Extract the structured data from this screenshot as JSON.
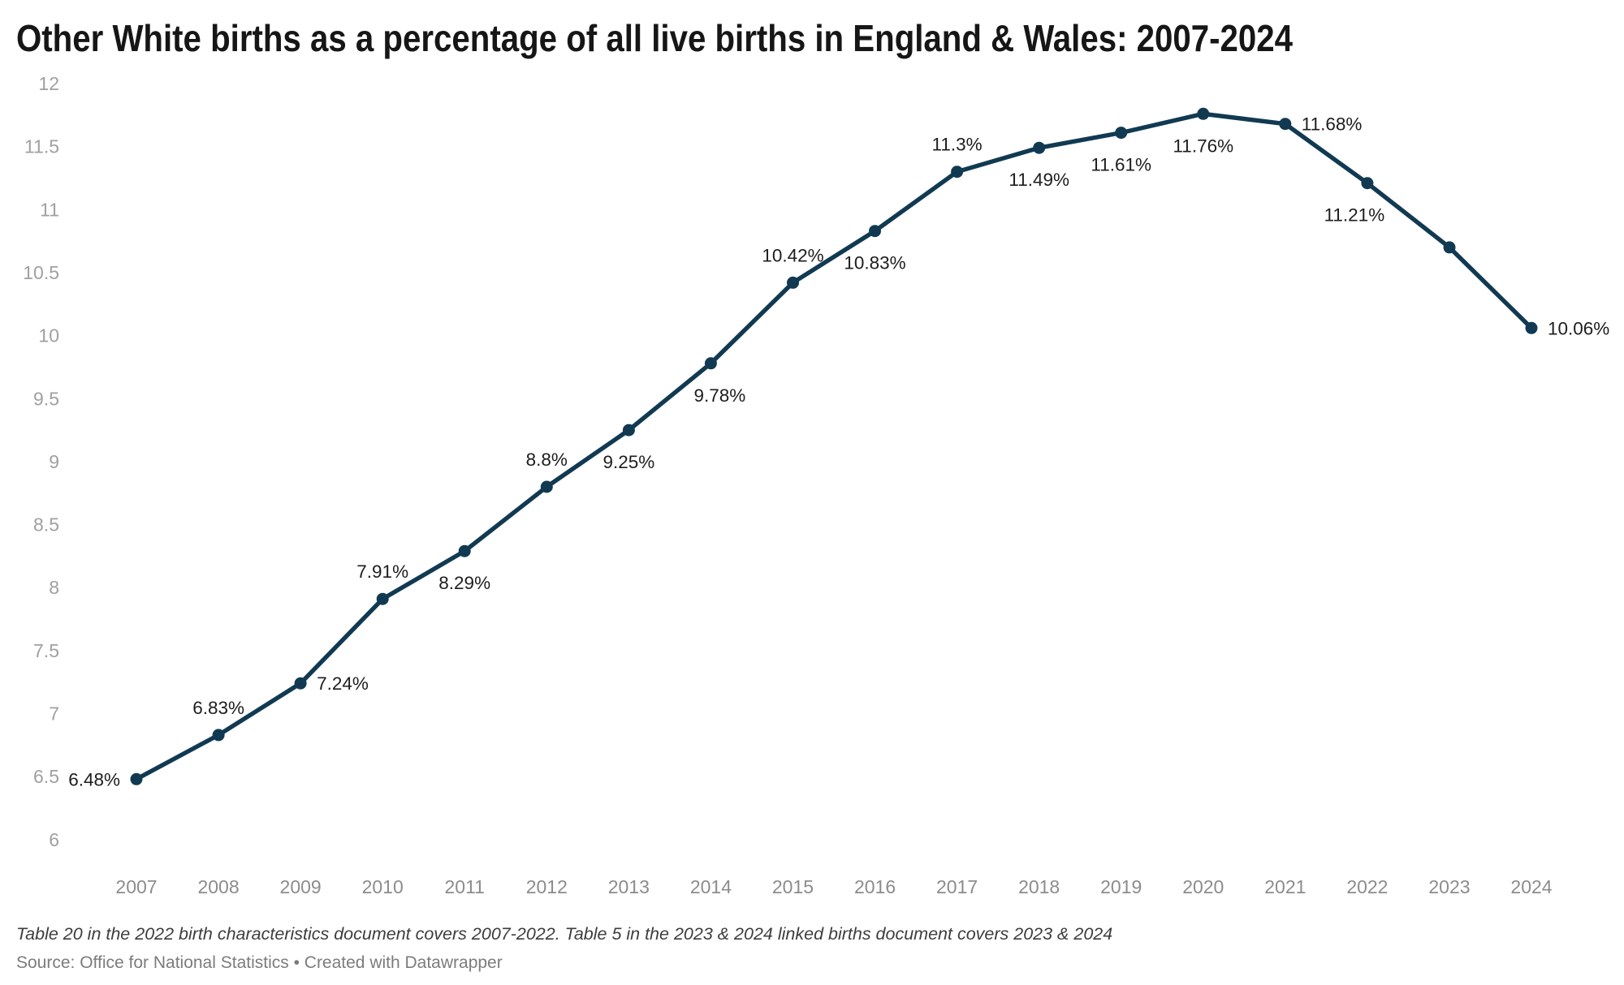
{
  "title": "Other White births as a percentage of all live births in England & Wales: 2007-2024",
  "footnote": "Table 20 in the 2022 birth characteristics document covers 2007-2022. Table 5 in the 2023 & 2024 linked births document covers 2023 & 2024",
  "source": "Source: Office for National Statistics • Created with Datawrapper",
  "chart_data": {
    "type": "line",
    "title": "Other White births as a percentage of all live births in England & Wales: 2007-2024",
    "x": [
      2007,
      2008,
      2009,
      2010,
      2011,
      2012,
      2013,
      2014,
      2015,
      2016,
      2017,
      2018,
      2019,
      2020,
      2021,
      2022,
      2023,
      2024
    ],
    "series": [
      {
        "name": "Other White births as a percentage of all live births",
        "values": [
          6.48,
          6.83,
          7.24,
          7.91,
          8.29,
          8.8,
          9.25,
          9.78,
          10.42,
          10.83,
          11.3,
          11.49,
          11.61,
          11.76,
          11.68,
          11.21,
          10.7,
          10.06
        ]
      }
    ],
    "point_labels": [
      "6.48%",
      "6.83%",
      "7.24%",
      "7.91%",
      "8.29%",
      "8.8%",
      "9.25%",
      "9.78%",
      "10.42%",
      "10.83%",
      "11.3%",
      "11.49%",
      "11.61%",
      "11.76%",
      "11.68%",
      "11.21%",
      "",
      "10.06%"
    ],
    "label_placements": [
      "left",
      "above",
      "right",
      "above",
      "below",
      "above",
      "below",
      "below-right",
      "above",
      "below",
      "above",
      "below",
      "below",
      "below",
      "right",
      "below-left",
      "none",
      "right"
    ],
    "xlabel": "",
    "ylabel": "",
    "ylim": [
      6,
      12
    ],
    "ytick_step": 0.5,
    "grid": false,
    "legend": "none",
    "colors": {
      "line": "#113a52",
      "point": "#113a52",
      "point_label": "#1d1d1d",
      "axis_text_y": "#a0a0a0",
      "axis_text_x": "#8c8c8c",
      "title": "#161616",
      "footnote": "#3d3d3d",
      "source": "#7c7c7c"
    }
  }
}
